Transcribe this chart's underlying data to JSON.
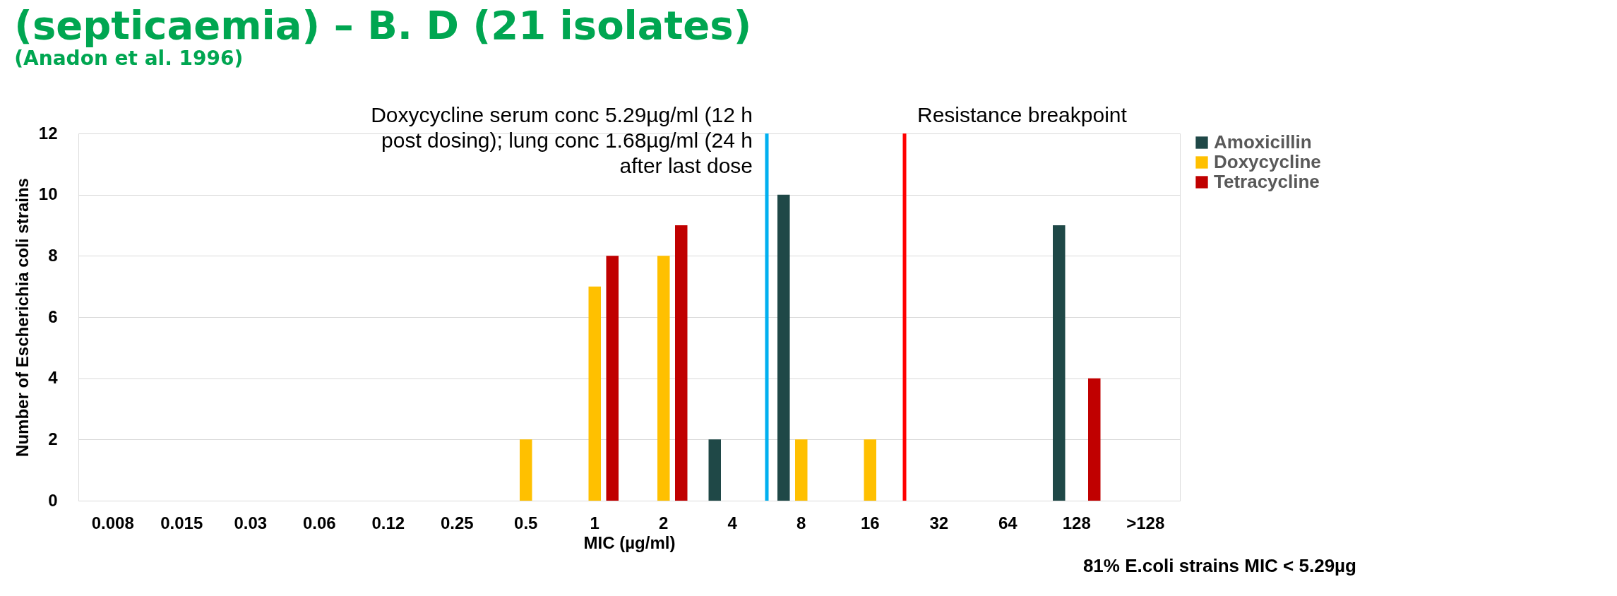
{
  "chart_data": {
    "type": "bar",
    "title": "(septicaemia) – B. D (21 isolates)",
    "subtitle": "(Anadon et al. 1996)",
    "categories": [
      "0.008",
      "0.015",
      "0.03",
      "0.06",
      "0.12",
      "0.25",
      "0.5",
      "1",
      "2",
      "4",
      "8",
      "16",
      "32",
      "64",
      "128",
      ">128"
    ],
    "series": [
      {
        "name": "Amoxicillin",
        "color": "#1f4847",
        "values": [
          0,
          0,
          0,
          0,
          0,
          0,
          0,
          0,
          0,
          2,
          10,
          0,
          0,
          0,
          9,
          0
        ]
      },
      {
        "name": "Doxycycline",
        "color": "#ffc000",
        "values": [
          0,
          0,
          0,
          0,
          0,
          0,
          2,
          7,
          8,
          0,
          2,
          2,
          0,
          0,
          0,
          0
        ]
      },
      {
        "name": "Tetracycline",
        "color": "#c00000",
        "values": [
          0,
          0,
          0,
          0,
          0,
          0,
          0,
          8,
          9,
          0,
          0,
          0,
          0,
          0,
          4,
          0
        ]
      }
    ],
    "xlabel": "MIC (µg/ml)",
    "ylabel": "Number of Escherichia coli strains",
    "ylim": [
      0,
      12
    ],
    "yticks": [
      0,
      2,
      4,
      6,
      8,
      10,
      12
    ],
    "grid": "y",
    "legend": "right",
    "ref_lines": [
      {
        "axis": "x",
        "value": "4",
        "label": "Doxycycline serum conc 5.29µg/ml (12 h post dosing); lung conc 1.68µg/ml (24 h after last dose",
        "color": "#00b0f0"
      },
      {
        "axis": "x",
        "value": "16",
        "label": "Resistance breakpoint",
        "color": "#ff0000"
      }
    ],
    "annotations": [
      "81% E.coli strains MIC < 5.29µg"
    ]
  }
}
